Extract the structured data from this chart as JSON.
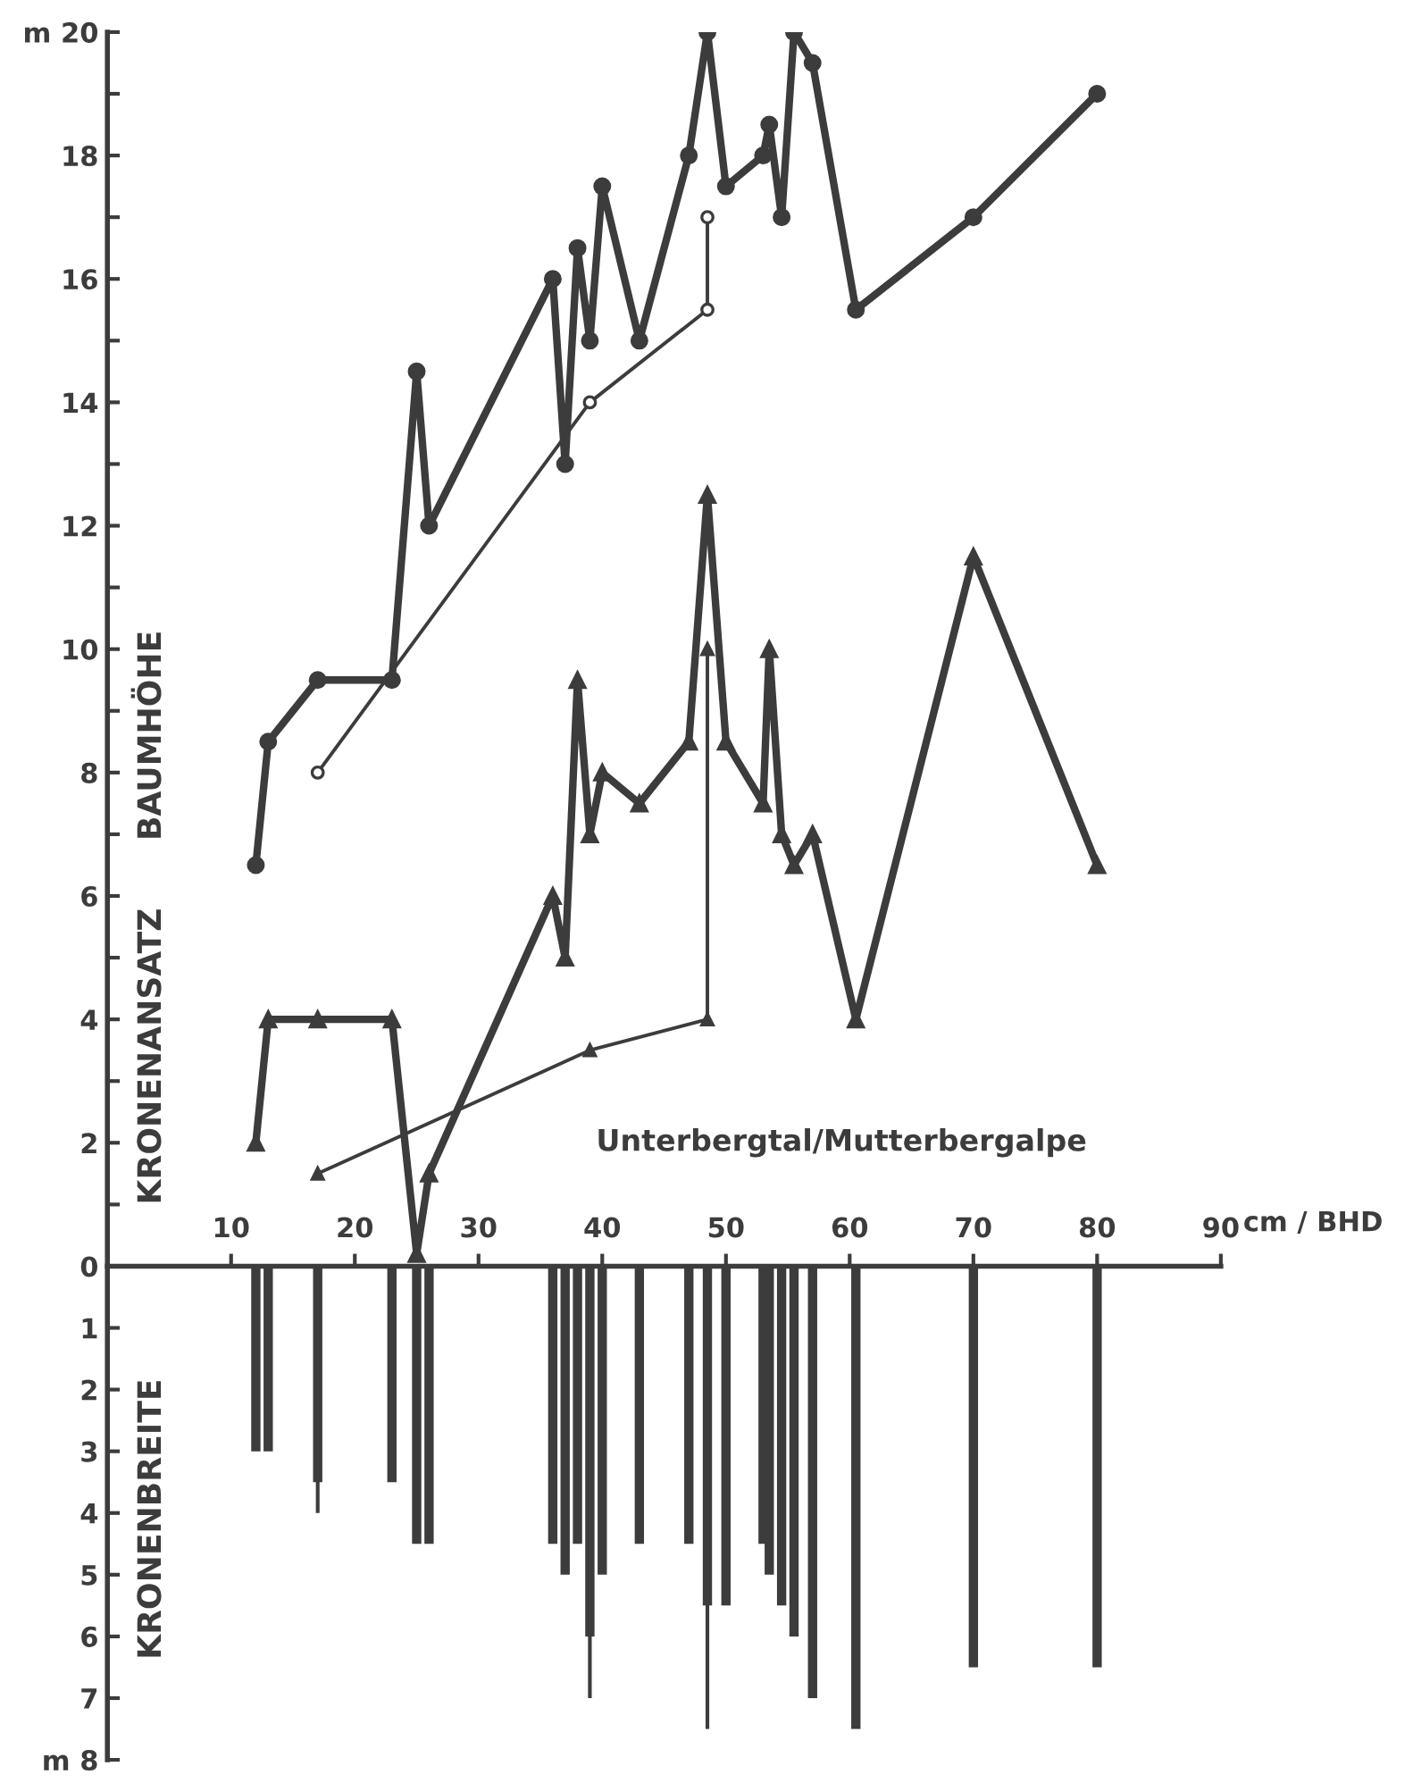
{
  "chart_data": {
    "type": "line",
    "xlabel": "cm / BHD",
    "annotations": [
      "BAUMHÖHE",
      "KRONENANSATZ",
      "KRONENBREITE",
      "Unterbergtal/Mutterbergalpe"
    ],
    "xlim": [
      0,
      90
    ],
    "xticks": [
      10,
      20,
      30,
      40,
      50,
      60,
      70,
      80,
      90
    ],
    "ylim": [
      -8,
      20
    ],
    "yticks": [
      {
        "value": -8,
        "label": "m 8"
      },
      {
        "value": -7,
        "label": "7"
      },
      {
        "value": -6,
        "label": "6"
      },
      {
        "value": -5,
        "label": "5"
      },
      {
        "value": -4,
        "label": "4"
      },
      {
        "value": -3,
        "label": "3"
      },
      {
        "value": -2,
        "label": "2"
      },
      {
        "value": -1,
        "label": "1"
      },
      0,
      {
        "value": 1,
        "label": null
      },
      2,
      {
        "value": 3,
        "label": null
      },
      4,
      {
        "value": 5,
        "label": null
      },
      6,
      {
        "value": 7,
        "label": null
      },
      8,
      {
        "value": 9,
        "label": null
      },
      10,
      {
        "value": 11,
        "label": null
      },
      12,
      {
        "value": 13,
        "label": null
      },
      14,
      {
        "value": 15,
        "label": null
      },
      16,
      {
        "value": 17,
        "label": null
      },
      18,
      {
        "value": 19,
        "label": null
      },
      {
        "value": 20,
        "label": "m 20"
      }
    ],
    "line_style": "solid",
    "series": [
      {
        "marker": "circle",
        "color": "#3c3c3c",
        "x": [
          12,
          13,
          17,
          23,
          25,
          26,
          36,
          37,
          38,
          39,
          40,
          43,
          47,
          48.5,
          50,
          53,
          53.5,
          54.5,
          55.5,
          57,
          60.5,
          70,
          80
        ],
        "values": [
          6.5,
          8.5,
          9.5,
          9.5,
          14.5,
          12,
          16,
          13,
          16.5,
          15,
          17.5,
          15,
          18,
          20,
          17.5,
          18,
          18.5,
          17,
          20,
          19.5,
          15.5,
          17,
          19
        ]
      },
      {
        "marker": "circle",
        "color": "#3c3c3c",
        "x": [
          17,
          39,
          48.5,
          48.5
        ],
        "values": [
          8,
          14,
          15.5,
          17
        ]
      },
      {
        "marker": "triangle",
        "color": "#3c3c3c",
        "x": [
          12,
          13,
          17,
          23,
          25,
          26,
          36,
          37,
          38,
          39,
          40,
          43,
          47,
          48.5,
          50,
          53,
          53.5,
          54.5,
          55.5,
          57,
          60.5,
          70,
          80
        ],
        "values": [
          2,
          4,
          4,
          4,
          0.2,
          1.5,
          6,
          5,
          9.5,
          7,
          8,
          7.5,
          8.5,
          12.5,
          8.5,
          7.5,
          10,
          7,
          6.5,
          7,
          4,
          11.5,
          6.5
        ]
      },
      {
        "marker": "triangle",
        "color": "#3c3c3c",
        "x": [
          17,
          39,
          48.5,
          48.5
        ],
        "values": [
          1.5,
          3.5,
          4,
          10
        ]
      },
      {
        "type": "bar",
        "color": "#3c3c3c",
        "x": [
          12,
          13,
          17,
          23,
          25,
          26,
          36,
          37,
          38,
          39,
          40,
          43,
          47,
          48.5,
          50,
          53,
          53.5,
          54.5,
          55.5,
          57,
          60.5,
          70,
          80
        ],
        "values": [
          -3,
          -3,
          -3.5,
          -3.5,
          -4.5,
          -4.5,
          -4.5,
          -5,
          -4.5,
          -6,
          -5,
          -4.5,
          -4.5,
          -5.5,
          -5.5,
          -4.5,
          -5,
          -5.5,
          -6,
          -7,
          -7.5,
          -6.5,
          -6.5
        ]
      },
      {
        "type": "bar",
        "color": "#3c3c3c",
        "x": [
          17,
          39,
          48.5
        ],
        "values": [
          -4,
          -7,
          -7.5
        ]
      }
    ]
  }
}
